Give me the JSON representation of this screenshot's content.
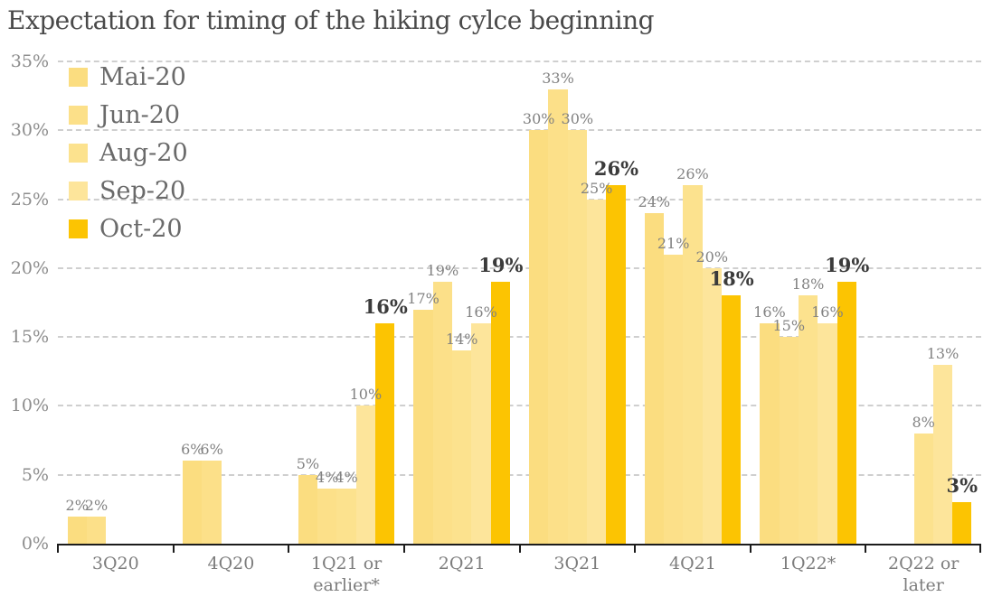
{
  "chart_data": {
    "type": "bar",
    "title": "Expectation for timing of the hiking cylce beginning",
    "xlabel": "",
    "ylabel": "",
    "ylim": [
      0,
      35
    ],
    "yticks": [
      "35%",
      "30%",
      "25%",
      "20%",
      "15%",
      "10%",
      "5%",
      "0%"
    ],
    "grid": "dashed-horizontal",
    "legend_position": "top-left",
    "categories": [
      "3Q20",
      "4Q20",
      "1Q21 or earlier*",
      "2Q21",
      "3Q21",
      "4Q21",
      "1Q22*",
      "2Q22 or later"
    ],
    "series": [
      {
        "name": "Mai-20",
        "color": "#fbdd80",
        "values": [
          2,
          6,
          5,
          17,
          30,
          24,
          16,
          null
        ]
      },
      {
        "name": "Jun-20",
        "color": "#fce089",
        "values": [
          2,
          6,
          4,
          19,
          33,
          21,
          15,
          null
        ]
      },
      {
        "name": "Aug-20",
        "color": "#fce28e",
        "values": [
          null,
          null,
          4,
          14,
          30,
          26,
          18,
          8
        ]
      },
      {
        "name": "Sep-20",
        "color": "#fde59b",
        "values": [
          null,
          null,
          10,
          16,
          25,
          20,
          16,
          13
        ]
      },
      {
        "name": "Oct-20",
        "color": "#fcc402",
        "values": [
          null,
          null,
          16,
          19,
          26,
          18,
          19,
          3
        ],
        "emphasis": true
      }
    ],
    "label_suffix": "%"
  },
  "colors": {
    "title_text": "#4a4a4a",
    "axis_text": "#8c8c8c",
    "category_text": "#7d7d7d",
    "label_text": "#828282",
    "emphasis_label_text": "#3b3b3b",
    "gridline": "#cfcfcf",
    "axis_line": "#1c1c1c",
    "background": "#ffffff"
  }
}
